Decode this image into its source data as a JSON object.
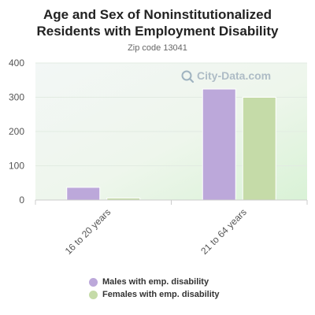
{
  "chart_data": {
    "type": "bar",
    "title": "Age and Sex of Noninstitutionalized Residents with Employment Disability",
    "title_lines": [
      "Age and Sex of Noninstitutionalized",
      "Residents with Employment Disability"
    ],
    "subtitle": "Zip code 13041",
    "categories": [
      "16 to 20 years",
      "21 to 64 years"
    ],
    "series": [
      {
        "name": "Males with emp. disability",
        "values": [
          37,
          324
        ],
        "color": "#bca8da"
      },
      {
        "name": "Females with emp. disability",
        "values": [
          6,
          300
        ],
        "color": "#c5dba8"
      }
    ],
    "ylim": [
      0,
      400
    ],
    "yticks": [
      0,
      100,
      200,
      300,
      400
    ],
    "grid": true,
    "legend_position": "bottom"
  },
  "watermark": {
    "text": "City-Data.com",
    "icon": "magnifier-icon"
  }
}
